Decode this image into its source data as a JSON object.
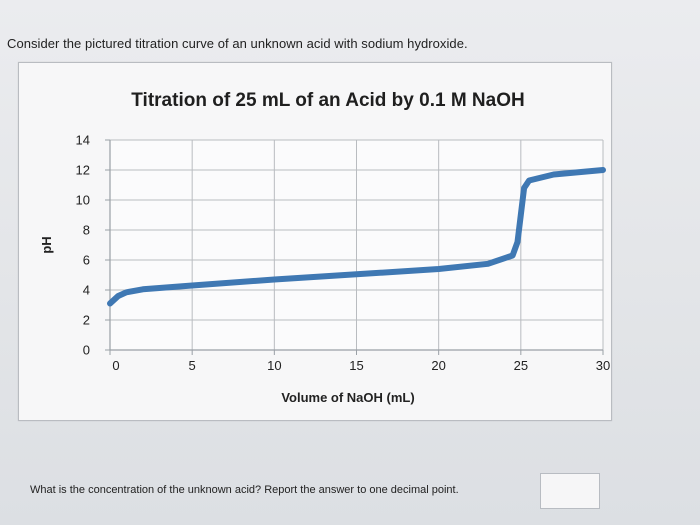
{
  "question": {
    "intro": "Consider the pictured titration curve of an unknown acid with sodium hydroxide.",
    "prompt": "What is the concentration of the unknown acid? Report the answer to one decimal point.",
    "answer_value": ""
  },
  "chart_data": {
    "type": "line",
    "title": "Titration of 25 mL of an Acid by 0.1 M NaOH",
    "xlabel": "Volume of NaOH (mL)",
    "ylabel": "pH",
    "xlim": [
      0,
      30
    ],
    "ylim": [
      0,
      14
    ],
    "x_ticks": [
      0,
      5,
      10,
      15,
      20,
      25,
      30
    ],
    "y_ticks": [
      0,
      2,
      4,
      6,
      8,
      10,
      12,
      14
    ],
    "grid": true,
    "line_color": "#3f78b3",
    "series": [
      {
        "values": [
          [
            0,
            3.1
          ],
          [
            0.5,
            3.6
          ],
          [
            1,
            3.85
          ],
          [
            2,
            4.05
          ],
          [
            5,
            4.3
          ],
          [
            10,
            4.7
          ],
          [
            15,
            5.05
          ],
          [
            20,
            5.4
          ],
          [
            23,
            5.75
          ],
          [
            24.5,
            6.3
          ],
          [
            24.8,
            7.2
          ],
          [
            25.0,
            9.0
          ],
          [
            25.2,
            10.8
          ],
          [
            25.5,
            11.3
          ],
          [
            27,
            11.7
          ],
          [
            30,
            12.0
          ]
        ]
      }
    ]
  }
}
